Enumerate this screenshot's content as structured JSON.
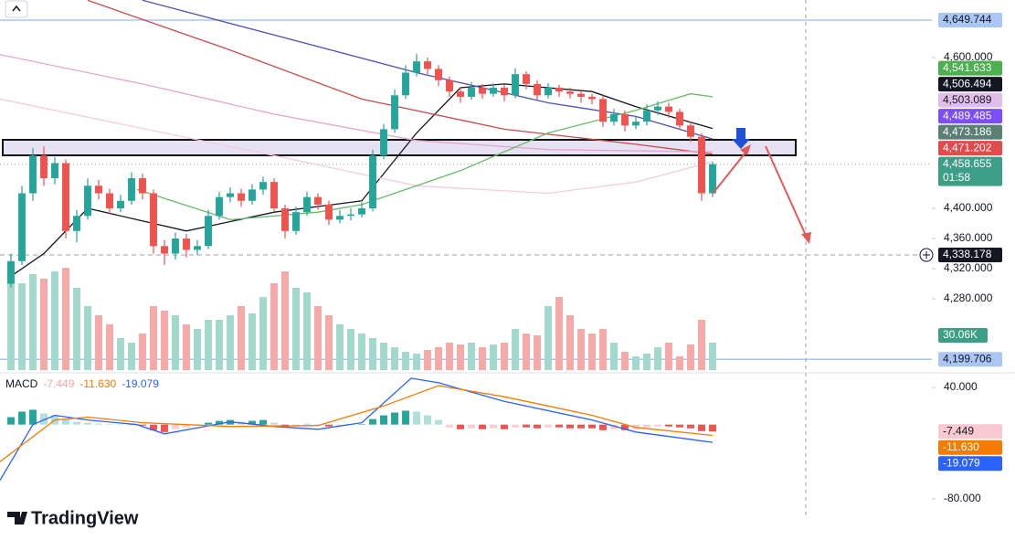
{
  "chart_data": {
    "type": "candlestick",
    "xlim": [
      -1,
      84
    ],
    "ylim": [
      4185.5,
      4676.4
    ],
    "yticks": [
      {
        "value": 4600,
        "label": "4,600.000"
      },
      {
        "value": 4400,
        "label": "4,400.000"
      },
      {
        "value": 4360,
        "label": "4,360.000"
      },
      {
        "value": 4320,
        "label": "4,320.000"
      },
      {
        "value": 4280,
        "label": "4,280.000"
      }
    ],
    "up_color": "#26a69a",
    "down_color": "#ef5350",
    "candles": [
      [
        4300,
        4340,
        4295,
        4330
      ],
      [
        4330,
        4430,
        4325,
        4420
      ],
      [
        4420,
        4480,
        4410,
        4470
      ],
      [
        4470,
        4482,
        4430,
        4440
      ],
      [
        4440,
        4468,
        4432,
        4460
      ],
      [
        4460,
        4465,
        4360,
        4370
      ],
      [
        4370,
        4398,
        4355,
        4390
      ],
      [
        4390,
        4440,
        4385,
        4430
      ],
      [
        4430,
        4438,
        4412,
        4420
      ],
      [
        4420,
        4426,
        4392,
        4400
      ],
      [
        4400,
        4418,
        4395,
        4410
      ],
      [
        4410,
        4448,
        4405,
        4440
      ],
      [
        4440,
        4446,
        4412,
        4420
      ],
      [
        4420,
        4425,
        4340,
        4350
      ],
      [
        4350,
        4358,
        4325,
        4340
      ],
      [
        4340,
        4368,
        4332,
        4360
      ],
      [
        4360,
        4366,
        4335,
        4345
      ],
      [
        4345,
        4358,
        4338,
        4350
      ],
      [
        4350,
        4398,
        4346,
        4390
      ],
      [
        4390,
        4422,
        4385,
        4415
      ],
      [
        4415,
        4428,
        4408,
        4420
      ],
      [
        4420,
        4426,
        4402,
        4410
      ],
      [
        4410,
        4432,
        4405,
        4425
      ],
      [
        4425,
        4442,
        4418,
        4435
      ],
      [
        4435,
        4440,
        4395,
        4400
      ],
      [
        4400,
        4405,
        4360,
        4370
      ],
      [
        4370,
        4402,
        4365,
        4395
      ],
      [
        4395,
        4422,
        4390,
        4415
      ],
      [
        4415,
        4420,
        4398,
        4405
      ],
      [
        4405,
        4410,
        4378,
        4385
      ],
      [
        4385,
        4398,
        4380,
        4390
      ],
      [
        4390,
        4400,
        4384,
        4392
      ],
      [
        4392,
        4408,
        4388,
        4400
      ],
      [
        4400,
        4478,
        4396,
        4470
      ],
      [
        4470,
        4512,
        4465,
        4505
      ],
      [
        4505,
        4558,
        4500,
        4550
      ],
      [
        4550,
        4590,
        4545,
        4580
      ],
      [
        4580,
        4605,
        4575,
        4595
      ],
      [
        4595,
        4600,
        4578,
        4585
      ],
      [
        4585,
        4590,
        4562,
        4570
      ],
      [
        4570,
        4575,
        4548,
        4555
      ],
      [
        4555,
        4560,
        4540,
        4548
      ],
      [
        4548,
        4568,
        4544,
        4560
      ],
      [
        4560,
        4565,
        4545,
        4552
      ],
      [
        4552,
        4566,
        4548,
        4560
      ],
      [
        4560,
        4564,
        4542,
        4550
      ],
      [
        4550,
        4586,
        4546,
        4578
      ],
      [
        4578,
        4582,
        4558,
        4565
      ],
      [
        4565,
        4570,
        4544,
        4550
      ],
      [
        4550,
        4566,
        4546,
        4560
      ],
      [
        4560,
        4564,
        4548,
        4555
      ],
      [
        4555,
        4560,
        4546,
        4552
      ],
      [
        4552,
        4556,
        4540,
        4548
      ],
      [
        4548,
        4552,
        4538,
        4545
      ],
      [
        4545,
        4550,
        4508,
        4515
      ],
      [
        4515,
        4532,
        4510,
        4525
      ],
      [
        4525,
        4530,
        4502,
        4510
      ],
      [
        4510,
        4522,
        4505,
        4515
      ],
      [
        4515,
        4538,
        4510,
        4530
      ],
      [
        4530,
        4542,
        4524,
        4535
      ],
      [
        4535,
        4540,
        4520,
        4528
      ],
      [
        4528,
        4532,
        4504,
        4510
      ],
      [
        4510,
        4515,
        4488,
        4495
      ],
      [
        4495,
        4500,
        4410,
        4420
      ],
      [
        4420,
        4462,
        4415,
        4458.655
      ]
    ],
    "volume": {
      "ylim": [
        0,
        405
      ],
      "up_color": "#a3d9cd",
      "down_color": "#f5aaa8",
      "label": "30.06K",
      "values": [
        110,
        95,
        105,
        100,
        108,
        112,
        90,
        70,
        60,
        50,
        35,
        30,
        40,
        70,
        65,
        60,
        50,
        45,
        55,
        55,
        60,
        70,
        62,
        80,
        95,
        108,
        90,
        85,
        70,
        60,
        50,
        45,
        40,
        35,
        30,
        25,
        20,
        18,
        22,
        25,
        30,
        28,
        30,
        25,
        28,
        30,
        45,
        40,
        38,
        70,
        80,
        60,
        45,
        40,
        45,
        30,
        20,
        15,
        18,
        25,
        30,
        15,
        28,
        55,
        30.06
      ]
    },
    "moving_averages": [
      {
        "color": "#131722",
        "x": [
          0,
          3,
          7,
          16,
          24,
          32,
          37,
          41,
          45,
          53,
          57,
          64
        ],
        "values": [
          4310,
          4340,
          4400,
          4370,
          4395,
          4410,
          4500,
          4560,
          4565,
          4555,
          4535,
          4506
        ]
      },
      {
        "color": "#4c4fb8",
        "x": [
          12,
          24,
          37,
          49,
          57,
          64
        ],
        "values": [
          4676,
          4630,
          4580,
          4540,
          4522,
          4492
        ]
      },
      {
        "color": "#c84a4a",
        "x": [
          7,
          20,
          32,
          45,
          57,
          64
        ],
        "values": [
          4676,
          4610,
          4545,
          4505,
          4485,
          4472
        ]
      },
      {
        "color": "#e6a6cb",
        "x": [
          -1,
          12,
          24,
          37,
          49,
          64
        ],
        "values": [
          4604,
          4565,
          4525,
          4490,
          4478,
          4475
        ]
      },
      {
        "color": "#f1cde0",
        "x": [
          -1,
          24,
          37,
          49,
          57,
          64
        ],
        "values": [
          4545,
          4470,
          4430,
          4420,
          4435,
          4462
        ]
      },
      {
        "color": "#66bb6a",
        "x": [
          11.5,
          20,
          28,
          32,
          41,
          49,
          57,
          62,
          64
        ],
        "values": [
          4425,
          4385,
          4395,
          4405,
          4450,
          4500,
          4530,
          4552,
          4548
        ]
      }
    ],
    "price_labels": [
      {
        "value": 4649.744,
        "label": "4,649.744",
        "color": "#a9c6f5",
        "text_color": "#131722",
        "line": "solid"
      },
      {
        "value": 4541.633,
        "label": "4,541.633",
        "color": "#4caf50",
        "text_color": "#ffffff"
      },
      {
        "value": 4506.494,
        "label": "4,506.494",
        "color": "#131722",
        "text_color": "#ffffff"
      },
      {
        "value": 4503.089,
        "label": "4,503.089",
        "color": "#e1bee7",
        "text_color": "#131722"
      },
      {
        "value": 4489.485,
        "label": "4,489.485",
        "color": "#7c4dff",
        "text_color": "#ffffff"
      },
      {
        "value": 4473.186,
        "label": "4,473.186",
        "color": "#5b7f74",
        "text_color": "#ffffff"
      },
      {
        "value": 4471.202,
        "label": "4,471.202",
        "color": "#e24b4b",
        "text_color": "#ffffff"
      },
      {
        "value": 4458.655,
        "label": "4,458.655",
        "color": "#3d9e87",
        "text_color": "#ffffff",
        "line": "dotted",
        "countdown": "01:58"
      },
      {
        "value": 4338.178,
        "label": "4,338.178",
        "color": "#131722",
        "text_color": "#ffffff",
        "line": "dashed"
      },
      {
        "value": 4199.706,
        "label": "4,199.706",
        "color": "#a9c6f5",
        "text_color": "#131722",
        "line": "solid"
      }
    ],
    "macd": {
      "title": "MACD",
      "ylim": [
        -93.8,
        53.8
      ],
      "yticks": [
        {
          "value": 40,
          "label": "40.000"
        },
        {
          "value": -80,
          "label": "-80.000"
        }
      ],
      "histogram": [
        8,
        14,
        16,
        12,
        10,
        6,
        3,
        2,
        1,
        0.5,
        0.3,
        1,
        -1,
        -6,
        -8,
        -5,
        -3,
        -1,
        2,
        4,
        5,
        3,
        4,
        5,
        2,
        -3,
        -2,
        1,
        0.5,
        -2,
        -1,
        -0.5,
        0.5,
        6,
        10,
        13,
        15,
        14,
        10,
        5,
        -3,
        -5,
        -4,
        -5,
        -4,
        -5,
        -3,
        -3,
        -4,
        -3,
        -3,
        -4,
        -4,
        -4,
        -6,
        -5,
        -6,
        -5,
        -3,
        -2,
        -2,
        -3,
        -4,
        -7,
        -7.449
      ],
      "lines": [
        {
          "color": "#2962ff",
          "x": [
            -1,
            2,
            4,
            7,
            11.5,
            14,
            20,
            24,
            28,
            32,
            36.5,
            39,
            45,
            53,
            57,
            64
          ],
          "values": [
            -60,
            0,
            10,
            5,
            0,
            -10,
            3,
            -2,
            -5,
            2,
            50,
            45,
            25,
            5,
            -8,
            -19.079
          ]
        },
        {
          "color": "#f57c00",
          "x": [
            -1,
            4,
            7,
            12,
            20,
            28,
            34,
            39,
            45,
            53,
            57,
            64
          ],
          "values": [
            -40,
            5,
            8,
            2,
            -2,
            -1,
            20,
            42,
            30,
            10,
            -3,
            -11.63
          ]
        }
      ],
      "labels": [
        {
          "value": -7.449,
          "label": "-7.449",
          "color": "#f8c9d0",
          "text_color": "#131722",
          "legend_color": "#f2a5b0"
        },
        {
          "value": -11.63,
          "label": "-11.630",
          "color": "#f57c00",
          "text_color": "#ffffff",
          "legend_color": "#f57c00"
        },
        {
          "value": -19.079,
          "label": "-19.079",
          "color": "#2962ff",
          "text_color": "#ffffff",
          "legend_color": "#2962ff"
        }
      ]
    },
    "brand": "TradingView"
  }
}
